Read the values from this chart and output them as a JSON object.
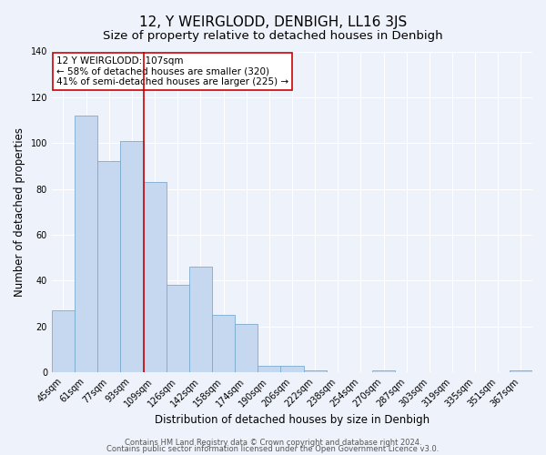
{
  "title": "12, Y WEIRGLODD, DENBIGH, LL16 3JS",
  "subtitle": "Size of property relative to detached houses in Denbigh",
  "xlabel": "Distribution of detached houses by size in Denbigh",
  "ylabel": "Number of detached properties",
  "bin_labels": [
    "45sqm",
    "61sqm",
    "77sqm",
    "93sqm",
    "109sqm",
    "126sqm",
    "142sqm",
    "158sqm",
    "174sqm",
    "190sqm",
    "206sqm",
    "222sqm",
    "238sqm",
    "254sqm",
    "270sqm",
    "287sqm",
    "303sqm",
    "319sqm",
    "335sqm",
    "351sqm",
    "367sqm"
  ],
  "bar_heights": [
    27,
    112,
    92,
    101,
    83,
    38,
    46,
    25,
    21,
    3,
    3,
    1,
    0,
    0,
    1,
    0,
    0,
    0,
    0,
    0,
    1
  ],
  "bar_color": "#c5d8f0",
  "bar_edge_color": "#7aabcf",
  "vline_x_idx": 4,
  "vline_color": "#cc0000",
  "annotation_box_text": "12 Y WEIRGLODD: 107sqm\n← 58% of detached houses are smaller (320)\n41% of semi-detached houses are larger (225) →",
  "ylim": [
    0,
    140
  ],
  "yticks": [
    0,
    20,
    40,
    60,
    80,
    100,
    120,
    140
  ],
  "footer_line1": "Contains HM Land Registry data © Crown copyright and database right 2024.",
  "footer_line2": "Contains public sector information licensed under the Open Government Licence v3.0.",
  "background_color": "#eef2fa",
  "grid_color": "#ffffff",
  "title_fontsize": 11,
  "subtitle_fontsize": 9.5,
  "axis_label_fontsize": 8.5,
  "tick_fontsize": 7,
  "annotation_fontsize": 7.5,
  "footer_fontsize": 6
}
